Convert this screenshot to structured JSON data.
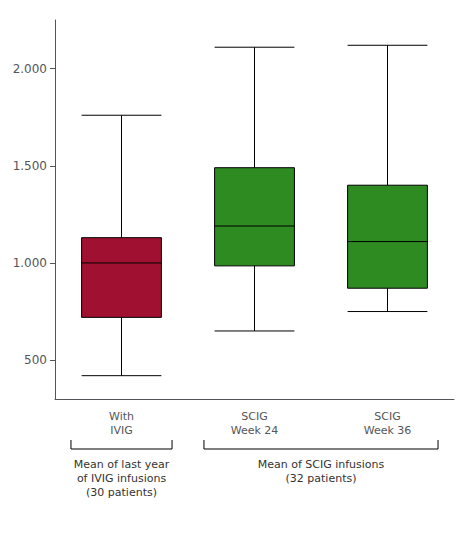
{
  "chart_data": {
    "type": "boxplot",
    "categories": [
      "With\nIVIG",
      "SCIG\nWeek 24",
      "SCIG\nWeek 36"
    ],
    "values": [
      [
        420,
        720,
        1000,
        1130,
        1760
      ],
      [
        650,
        985,
        1190,
        1490,
        2110
      ],
      [
        750,
        870,
        1110,
        1400,
        2120
      ]
    ],
    "colors": [
      "#a01030",
      "#2d8b22",
      "#2d8b22"
    ],
    "ylim": [
      300,
      2250
    ],
    "yticks": [
      500,
      {
        "value": 1000,
        "label": "1.000"
      },
      {
        "value": 1500,
        "label": "1.500"
      },
      {
        "value": 2000,
        "label": "2.000"
      }
    ],
    "grid": false,
    "groups": [
      {
        "label": "Mean of last year\nof IVIG infusions\n(30 patients)",
        "members": [
          "With\nIVIG"
        ]
      },
      {
        "label": "Mean of SCIG infusions\n(32 patients)",
        "members": [
          "SCIG\nWeek 24",
          "SCIG\nWeek 36"
        ]
      }
    ]
  }
}
